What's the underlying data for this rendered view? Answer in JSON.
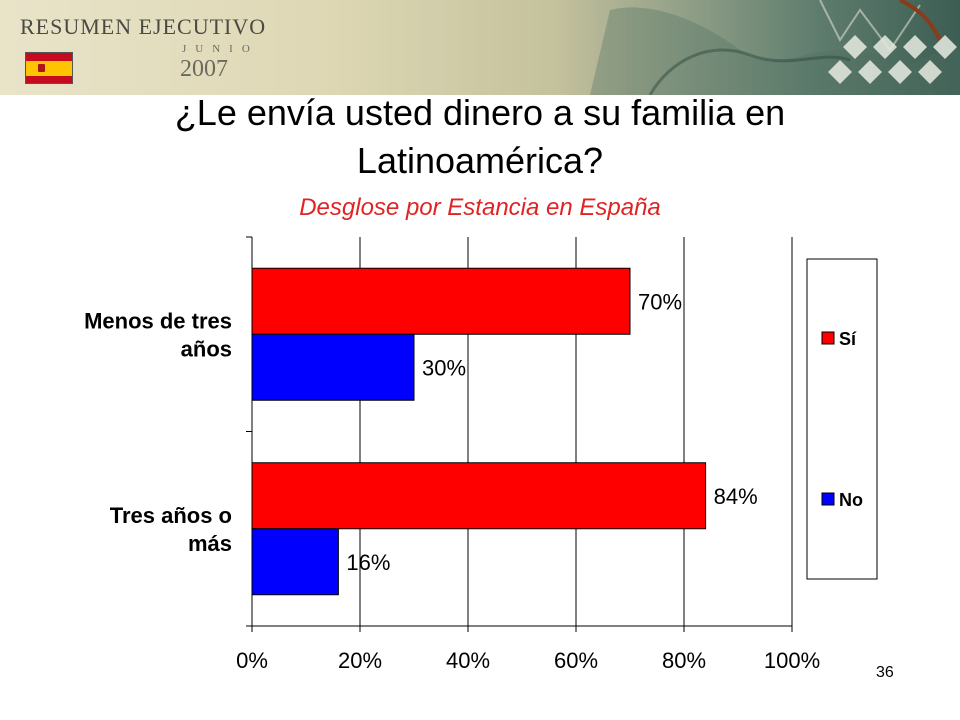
{
  "header": {
    "title": "RESUMEN EJECUTIVO",
    "month": "JUNIO",
    "year": "2007"
  },
  "slide": {
    "title_line1": "¿Le envía usted dinero a su familia en",
    "title_line2": "Latinoamérica?",
    "subtitle": "Desglose por Estancia en España",
    "page_number": "36"
  },
  "colors": {
    "si": "#ff0000",
    "no": "#0000ff",
    "subtitle": "#e02424"
  },
  "chart_data": {
    "type": "bar",
    "orientation": "horizontal",
    "categories": [
      "Menos de tres años",
      "Tres años o más"
    ],
    "category_lines": [
      [
        "Menos de tres",
        "años"
      ],
      [
        "Tres años o",
        "más"
      ]
    ],
    "series": [
      {
        "name": "Sí",
        "values": [
          70,
          84
        ],
        "labels": [
          "70%",
          "84%"
        ],
        "color": "#ff0000"
      },
      {
        "name": "No",
        "values": [
          30,
          16
        ],
        "labels": [
          "30%",
          "16%"
        ],
        "color": "#0000ff"
      }
    ],
    "xlim": [
      0,
      100
    ],
    "xticks": [
      "0%",
      "20%",
      "40%",
      "60%",
      "80%",
      "100%"
    ],
    "grid": true,
    "legend": "right"
  }
}
